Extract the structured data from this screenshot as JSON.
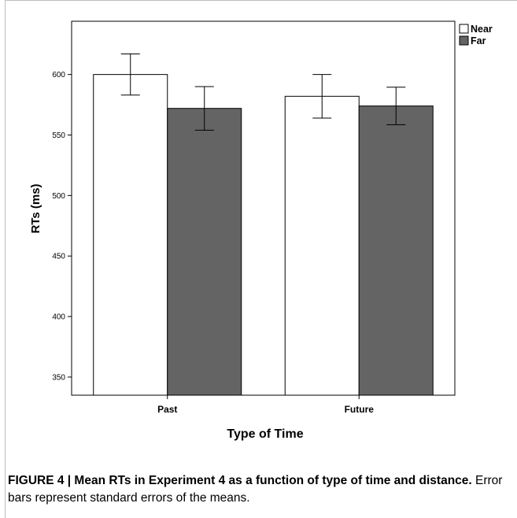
{
  "chart_data": {
    "type": "bar",
    "categories": [
      "Past",
      "Future"
    ],
    "series": [
      {
        "name": "Near",
        "values": [
          600,
          582
        ],
        "errors": [
          17,
          18
        ],
        "color": "#ffffff"
      },
      {
        "name": "Far",
        "values": [
          572,
          574
        ],
        "errors": [
          18,
          15.5
        ],
        "color": "#646464"
      }
    ],
    "xlabel": "Type of Time",
    "ylabel": "RTs (ms)",
    "ylim": [
      335,
      644
    ],
    "yticks": [
      350,
      400,
      450,
      500,
      550,
      600
    ],
    "legend_position": "top-right",
    "grid": false
  },
  "caption": {
    "label": "FIGURE 4 | Mean RTs in Experiment 4 as a function of type of time and distance.",
    "text": " Error bars represent standard errors of the means."
  }
}
